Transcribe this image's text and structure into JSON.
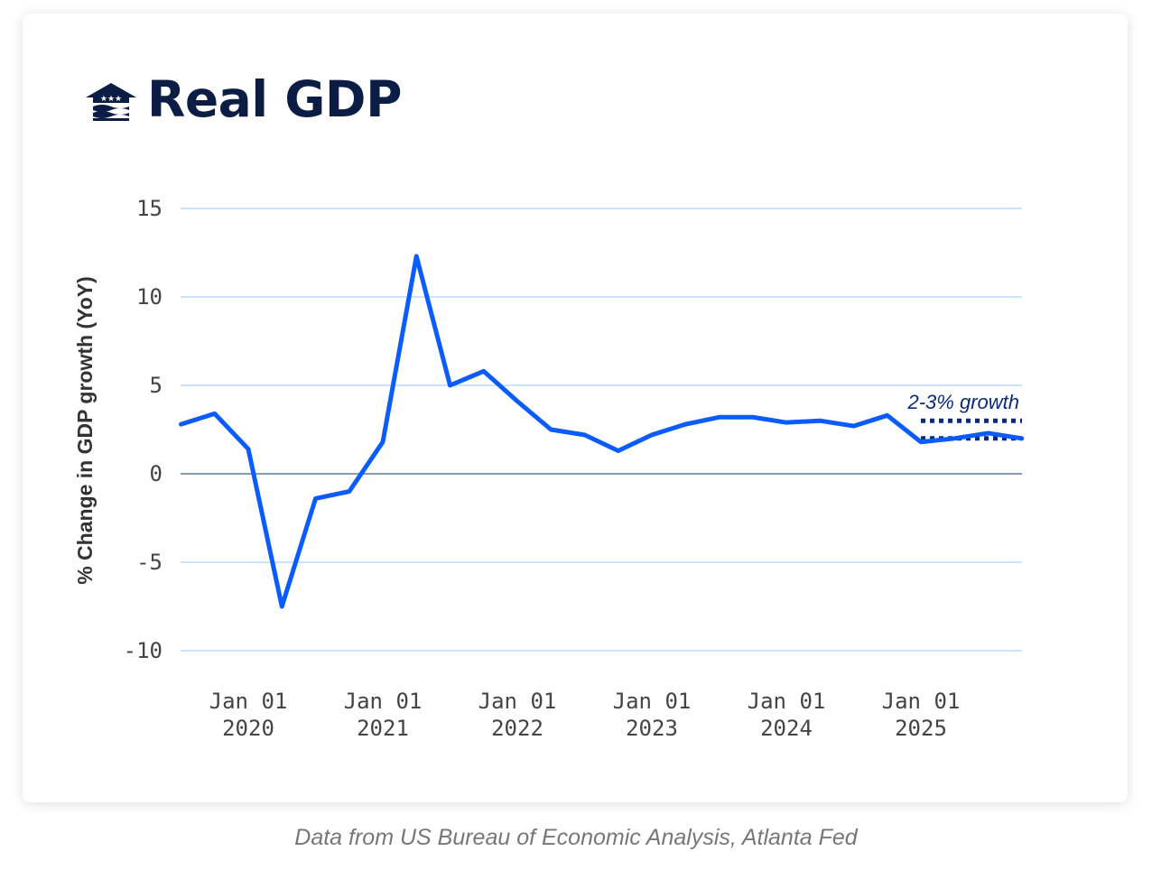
{
  "header": {
    "title": "Real GDP"
  },
  "caption": "Data from US Bureau of Economic Analysis, Atlanta Fed",
  "colors": {
    "line": "#0a5cff",
    "grid": "#cfe3fb",
    "zero": "#8a9ab0",
    "target": "#0a2a78",
    "title": "#0c1d45"
  },
  "chart_data": {
    "type": "line",
    "title": "Real GDP",
    "ylabel": "% Change in GDP growth (YoY)",
    "xlabel": "",
    "ylim": [
      -10,
      15
    ],
    "yticks": [
      15,
      10,
      5,
      0,
      -5,
      -10
    ],
    "xticks": [
      {
        "date": "2020-01-01",
        "line1": "Jan 01",
        "line2": "2020"
      },
      {
        "date": "2021-01-01",
        "line1": "Jan 01",
        "line2": "2021"
      },
      {
        "date": "2022-01-01",
        "line1": "Jan 01",
        "line2": "2022"
      },
      {
        "date": "2023-01-01",
        "line1": "Jan 01",
        "line2": "2023"
      },
      {
        "date": "2024-01-01",
        "line1": "Jan 01",
        "line2": "2024"
      },
      {
        "date": "2025-01-01",
        "line1": "Jan 01",
        "line2": "2025"
      }
    ],
    "grid": true,
    "x": [
      "2019-07-01",
      "2019-10-01",
      "2020-01-01",
      "2020-04-01",
      "2020-07-01",
      "2020-10-01",
      "2021-01-01",
      "2021-04-01",
      "2021-07-01",
      "2021-10-01",
      "2022-01-01",
      "2022-04-01",
      "2022-07-01",
      "2022-10-01",
      "2023-01-01",
      "2023-04-01",
      "2023-07-01",
      "2023-10-01",
      "2024-01-01",
      "2024-04-01",
      "2024-07-01",
      "2024-10-01",
      "2025-01-01",
      "2025-04-01",
      "2025-07-01",
      "2025-10-01"
    ],
    "values": [
      2.8,
      3.4,
      1.4,
      -7.5,
      -1.4,
      -1.0,
      1.8,
      12.3,
      5.0,
      5.8,
      4.1,
      2.5,
      2.2,
      1.3,
      2.2,
      2.8,
      3.2,
      3.2,
      2.9,
      3.0,
      2.7,
      3.3,
      1.8,
      2.0,
      2.3,
      2.0
    ],
    "target_band": {
      "label": "2-3% growth",
      "low": 2,
      "high": 3,
      "from": "2025-01-01"
    }
  }
}
